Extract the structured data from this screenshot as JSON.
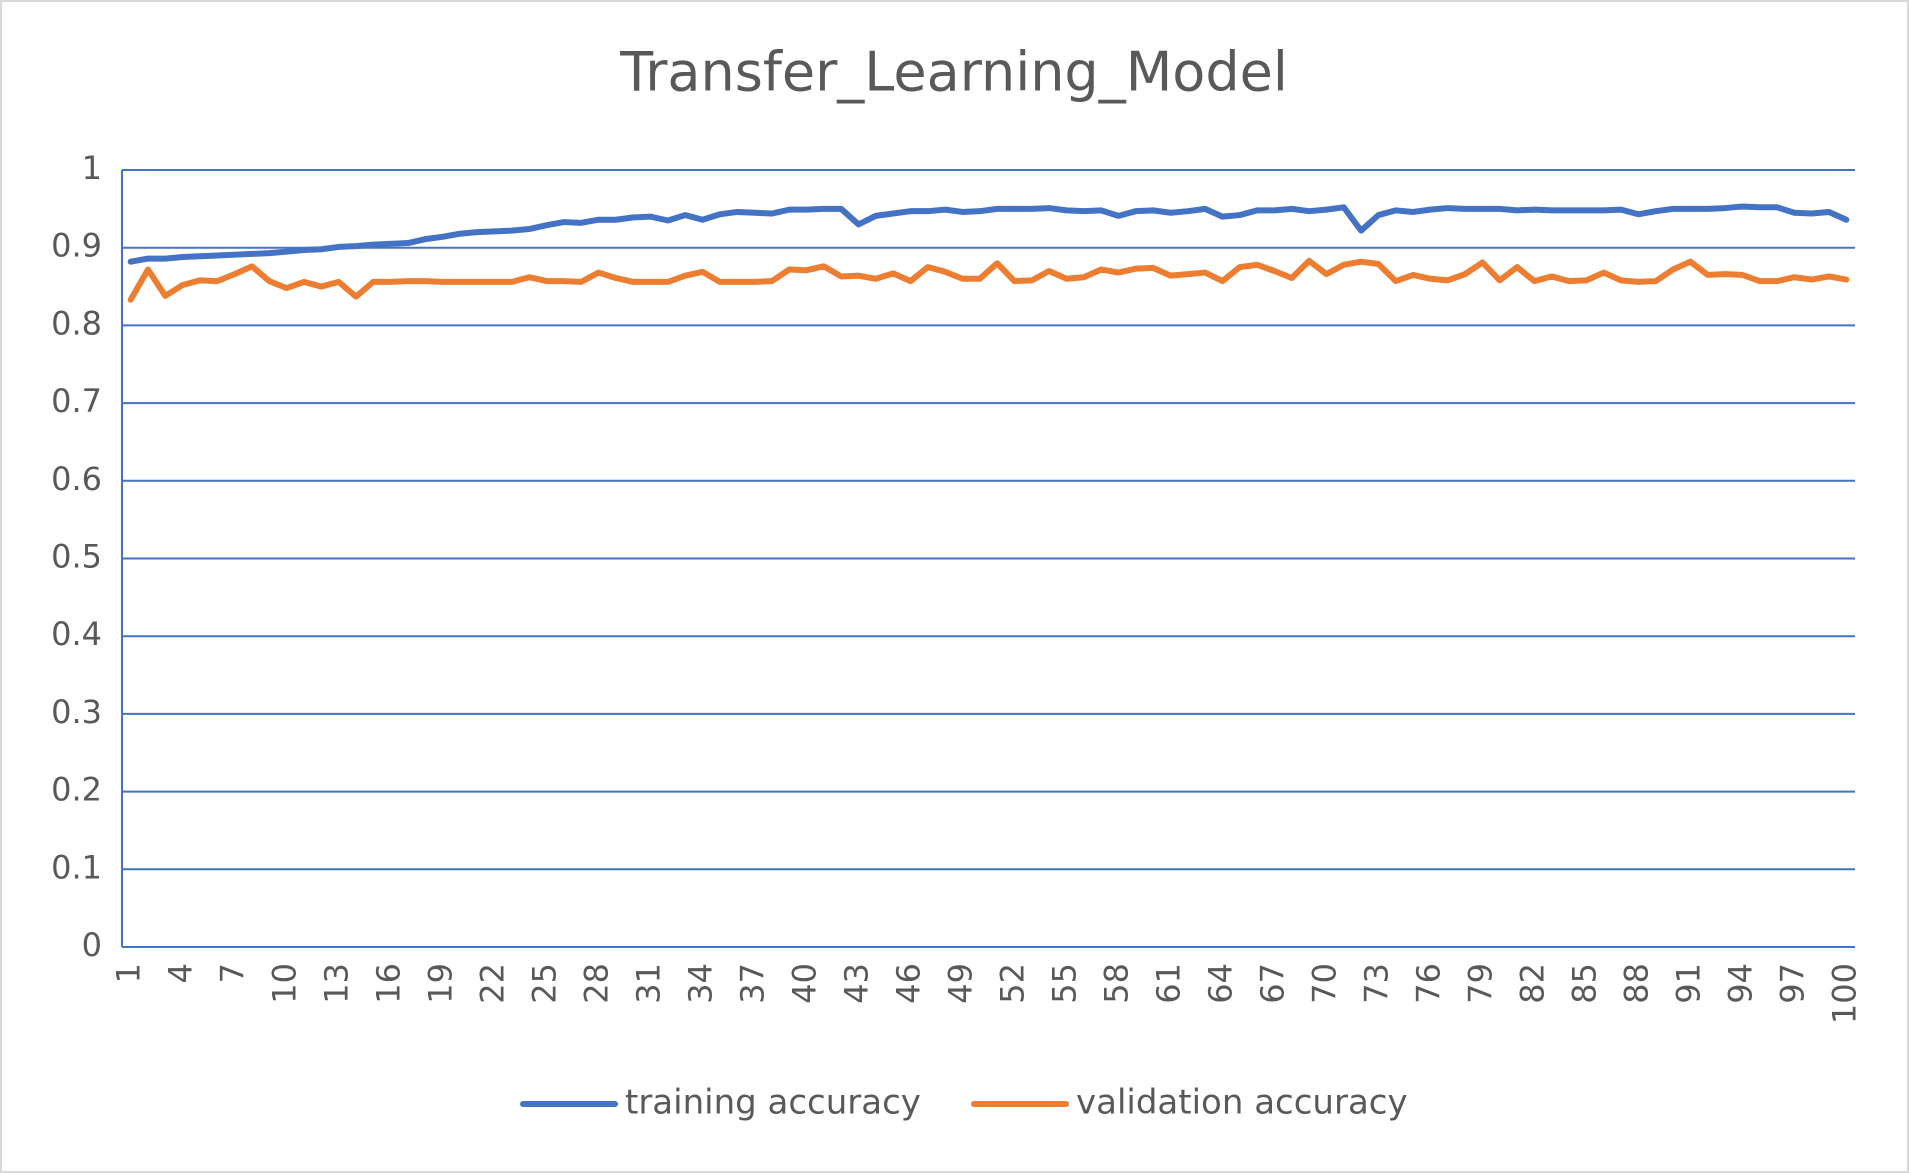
{
  "chart_data": {
    "type": "line",
    "title": "Transfer_Learning_Model",
    "categories": [
      "1",
      null,
      null,
      "4",
      null,
      null,
      "7",
      null,
      null,
      "10",
      null,
      null,
      "13",
      null,
      null,
      "16",
      null,
      null,
      "19",
      null,
      null,
      "22",
      null,
      null,
      "25",
      null,
      null,
      "28",
      null,
      null,
      "31",
      null,
      null,
      "34",
      null,
      null,
      "37",
      null,
      null,
      "40",
      null,
      null,
      "43",
      null,
      null,
      "46",
      null,
      null,
      "49",
      null,
      null,
      "52",
      null,
      null,
      "55",
      null,
      null,
      "58",
      null,
      null,
      "61",
      null,
      null,
      "64",
      null,
      null,
      "67",
      null,
      null,
      "70",
      null,
      null,
      "73",
      null,
      null,
      "76",
      null,
      null,
      "79",
      null,
      null,
      "82",
      null,
      null,
      "85",
      null,
      null,
      "88",
      null,
      null,
      "91",
      null,
      null,
      "94",
      null,
      null,
      "97",
      null,
      null,
      "100"
    ],
    "series": [
      {
        "name": "training accuracy",
        "color": "#4472c4",
        "values": [
          0.882,
          0.886,
          0.886,
          0.888,
          0.889,
          0.89,
          0.891,
          0.892,
          0.893,
          0.895,
          0.897,
          0.898,
          0.901,
          0.902,
          0.904,
          0.905,
          0.906,
          0.911,
          0.914,
          0.918,
          0.92,
          0.921,
          0.922,
          0.924,
          0.929,
          0.933,
          0.932,
          0.936,
          0.936,
          0.939,
          0.94,
          0.935,
          0.942,
          0.936,
          0.943,
          0.946,
          0.945,
          0.944,
          0.949,
          0.949,
          0.95,
          0.95,
          0.93,
          0.941,
          0.944,
          0.947,
          0.947,
          0.949,
          0.946,
          0.947,
          0.95,
          0.95,
          0.95,
          0.951,
          0.948,
          0.947,
          0.948,
          0.941,
          0.947,
          0.948,
          0.945,
          0.947,
          0.95,
          0.94,
          0.942,
          0.948,
          0.948,
          0.95,
          0.947,
          0.949,
          0.952,
          0.922,
          0.942,
          0.948,
          0.946,
          0.949,
          0.951,
          0.95,
          0.95,
          0.95,
          0.948,
          0.949,
          0.948,
          0.948,
          0.948,
          0.948,
          0.949,
          0.943,
          0.947,
          0.95,
          0.95,
          0.95,
          0.951,
          0.953,
          0.952,
          0.952,
          0.945,
          0.944,
          0.946,
          0.936
        ]
      },
      {
        "name": "validation accuracy",
        "color": "#ed7d31",
        "values": [
          0.833,
          0.872,
          0.838,
          0.852,
          0.858,
          0.857,
          0.866,
          0.876,
          0.857,
          0.848,
          0.856,
          0.85,
          0.856,
          0.837,
          0.856,
          0.856,
          0.857,
          0.857,
          0.856,
          0.856,
          0.856,
          0.856,
          0.856,
          0.862,
          0.857,
          0.857,
          0.856,
          0.868,
          0.861,
          0.856,
          0.856,
          0.856,
          0.864,
          0.869,
          0.856,
          0.856,
          0.856,
          0.857,
          0.872,
          0.871,
          0.876,
          0.863,
          0.864,
          0.86,
          0.867,
          0.857,
          0.875,
          0.869,
          0.86,
          0.86,
          0.88,
          0.857,
          0.858,
          0.87,
          0.86,
          0.862,
          0.872,
          0.868,
          0.873,
          0.874,
          0.864,
          0.866,
          0.868,
          0.857,
          0.875,
          0.878,
          0.87,
          0.861,
          0.883,
          0.866,
          0.878,
          0.882,
          0.879,
          0.857,
          0.865,
          0.86,
          0.858,
          0.866,
          0.881,
          0.858,
          0.875,
          0.857,
          0.863,
          0.857,
          0.858,
          0.868,
          0.858,
          0.856,
          0.857,
          0.872,
          0.882,
          0.865,
          0.866,
          0.865,
          0.857,
          0.857,
          0.862,
          0.859,
          0.863,
          0.859
        ]
      }
    ],
    "ylim": [
      0,
      1
    ],
    "yticks": [
      0,
      0.1,
      0.2,
      0.3,
      0.4,
      0.5,
      0.6,
      0.7,
      0.8,
      0.9,
      1
    ],
    "grid": true,
    "legend": "bottom"
  }
}
